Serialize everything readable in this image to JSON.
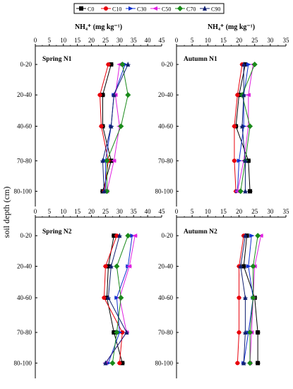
{
  "figure": {
    "ylabel": "soil depth (cm)",
    "series": [
      {
        "name": "C0",
        "color": "#000000",
        "marker": "square"
      },
      {
        "name": "C10",
        "color": "#e8000b",
        "marker": "circle"
      },
      {
        "name": "C30",
        "color": "#1030d0",
        "marker": "triangle-right"
      },
      {
        "name": "C50",
        "color": "#e020e0",
        "marker": "triangle-left"
      },
      {
        "name": "C70",
        "color": "#1a8a1a",
        "marker": "diamond"
      },
      {
        "name": "C90",
        "color": "#102070",
        "marker": "triangle-up"
      }
    ]
  },
  "chart_data": [
    {
      "type": "line",
      "panel": "Spring N1",
      "title": "Spring N1",
      "xlabel": "NH₄⁺ (mg kg⁻¹)",
      "xlim": [
        0,
        45
      ],
      "xticks": [
        0,
        5,
        10,
        15,
        20,
        25,
        30,
        35,
        40,
        45
      ],
      "y": [
        "0-20",
        "20-40",
        "40-60",
        "70-80",
        "80-100"
      ],
      "series": [
        {
          "name": "C0",
          "values": [
            27,
            24,
            24,
            27,
            24
          ]
        },
        {
          "name": "C10",
          "values": [
            26,
            23,
            23.5,
            26,
            24.5
          ]
        },
        {
          "name": "C30",
          "values": [
            32,
            28,
            27,
            25,
            25
          ]
        },
        {
          "name": "C50",
          "values": [
            30,
            28.5,
            30,
            28,
            25.5
          ]
        },
        {
          "name": "C70",
          "values": [
            31,
            33,
            30.5,
            25.5,
            25.5
          ]
        },
        {
          "name": "C90",
          "values": [
            33,
            28,
            27,
            24,
            24.5
          ]
        }
      ]
    },
    {
      "type": "line",
      "panel": "Autumn N1",
      "title": "Autumn N1",
      "xlabel": "NH₄⁺ (mg kg⁻¹)",
      "xlim": [
        0,
        35
      ],
      "xticks": [
        0,
        5,
        10,
        15,
        20,
        25,
        30,
        35
      ],
      "y": [
        "0-20",
        "20-40",
        "40-60",
        "70-80",
        "80-100"
      ],
      "series": [
        {
          "name": "C0",
          "values": [
            22,
            20,
            19,
            23,
            23.5
          ]
        },
        {
          "name": "C10",
          "values": [
            21,
            19.5,
            18.5,
            18.5,
            19
          ]
        },
        {
          "name": "C30",
          "values": [
            23,
            21.5,
            21.5,
            20,
            19.5
          ]
        },
        {
          "name": "C50",
          "values": [
            24.5,
            23,
            23,
            21.5,
            19.5
          ]
        },
        {
          "name": "C70",
          "values": [
            25,
            21,
            23.5,
            22,
            20.5
          ]
        },
        {
          "name": "C90",
          "values": [
            21.5,
            21.5,
            21,
            22,
            22
          ]
        }
      ]
    },
    {
      "type": "line",
      "panel": "Spring N2",
      "title": "Spring N2",
      "xlabel": "",
      "xlim": [
        0,
        45
      ],
      "xticks": [
        0,
        5,
        10,
        15,
        20,
        25,
        30,
        35,
        40,
        45
      ],
      "y": [
        "0-20",
        "20-40",
        "40-60",
        "70-80",
        "80-100"
      ],
      "series": [
        {
          "name": "C0",
          "values": [
            28,
            26,
            25.5,
            28,
            31
          ]
        },
        {
          "name": "C10",
          "values": [
            29,
            25,
            24.5,
            31,
            30
          ]
        },
        {
          "name": "C30",
          "values": [
            34.5,
            33,
            29,
            30,
            26
          ]
        },
        {
          "name": "C50",
          "values": [
            35.5,
            33.5,
            30,
            32.5,
            25
          ]
        },
        {
          "name": "C70",
          "values": [
            33,
            29,
            30.5,
            29,
            27.5
          ]
        },
        {
          "name": "C90",
          "values": [
            30,
            27,
            26,
            32.5,
            25
          ]
        }
      ]
    },
    {
      "type": "line",
      "panel": "Autumn N2",
      "title": "Autumn N2",
      "xlabel": "",
      "xlim": [
        0,
        35
      ],
      "xticks": [
        0,
        5,
        10,
        15,
        20,
        25,
        30,
        35
      ],
      "y": [
        "0-20",
        "20-40",
        "40-60",
        "70-80",
        "80-100"
      ],
      "series": [
        {
          "name": "C0",
          "values": [
            22.5,
            21.5,
            25,
            26,
            26
          ]
        },
        {
          "name": "C10",
          "values": [
            21.5,
            20,
            20,
            20,
            19.5
          ]
        },
        {
          "name": "C30",
          "values": [
            24,
            23,
            24.5,
            23,
            21.5
          ]
        },
        {
          "name": "C50",
          "values": [
            27,
            25,
            24.5,
            24,
            23.5
          ]
        },
        {
          "name": "C70",
          "values": [
            26,
            24.5,
            24.5,
            23.5,
            23.5
          ]
        },
        {
          "name": "C90",
          "values": [
            22,
            20.5,
            22,
            22,
            21.5
          ]
        }
      ]
    }
  ]
}
